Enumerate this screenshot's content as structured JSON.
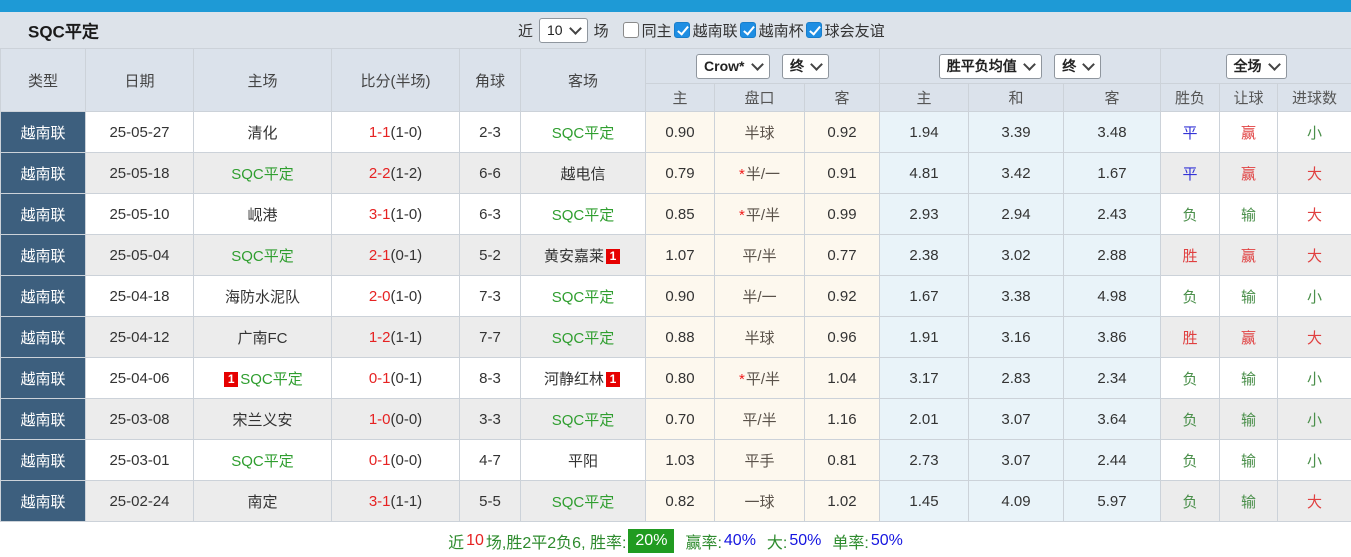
{
  "title": "SQC平定",
  "toolbar": {
    "near_label": "近",
    "count_select": "10",
    "unit_label": "场",
    "filters": [
      {
        "label": "同主",
        "checked": false
      },
      {
        "label": "越南联",
        "checked": true
      },
      {
        "label": "越南杯",
        "checked": true
      },
      {
        "label": "球会友谊",
        "checked": true
      }
    ]
  },
  "header": {
    "left": [
      "类型",
      "日期",
      "主场",
      "比分(半场)",
      "角球",
      "客场"
    ],
    "dropdowns": {
      "company": "Crow*",
      "final1": "终",
      "avg": "胜平负均值",
      "final2": "终",
      "scope": "全场"
    },
    "sub": [
      "主",
      "盘口",
      "客",
      "主",
      "和",
      "客",
      "胜负",
      "让球",
      "进球数"
    ]
  },
  "rows": [
    {
      "league": "越南联",
      "date": "25-05-27",
      "home": "清化",
      "home_sqc": false,
      "home_badge": "",
      "score": "1-1",
      "half": "(1-0)",
      "corner": "2-3",
      "away": "SQC平定",
      "away_sqc": true,
      "away_badge": "",
      "o1": "0.90",
      "star": false,
      "pan": "半球",
      "o2": "0.92",
      "w": "1.94",
      "d": "3.39",
      "l": "3.48",
      "res": "平",
      "let": "赢",
      "goal": "小"
    },
    {
      "league": "越南联",
      "date": "25-05-18",
      "home": "SQC平定",
      "home_sqc": true,
      "home_badge": "",
      "score": "2-2",
      "half": "(1-2)",
      "corner": "6-6",
      "away": "越电信",
      "away_sqc": false,
      "away_badge": "",
      "o1": "0.79",
      "star": true,
      "pan": "半/一",
      "o2": "0.91",
      "w": "4.81",
      "d": "3.42",
      "l": "1.67",
      "res": "平",
      "let": "赢",
      "goal": "大"
    },
    {
      "league": "越南联",
      "date": "25-05-10",
      "home": "岘港",
      "home_sqc": false,
      "home_badge": "",
      "score": "3-1",
      "half": "(1-0)",
      "corner": "6-3",
      "away": "SQC平定",
      "away_sqc": true,
      "away_badge": "",
      "o1": "0.85",
      "star": true,
      "pan": "平/半",
      "o2": "0.99",
      "w": "2.93",
      "d": "2.94",
      "l": "2.43",
      "res": "负",
      "let": "输",
      "goal": "大"
    },
    {
      "league": "越南联",
      "date": "25-05-04",
      "home": "SQC平定",
      "home_sqc": true,
      "home_badge": "",
      "score": "2-1",
      "half": "(0-1)",
      "corner": "5-2",
      "away": "黄安嘉莱",
      "away_sqc": false,
      "away_badge": "1",
      "o1": "1.07",
      "star": false,
      "pan": "平/半",
      "o2": "0.77",
      "w": "2.38",
      "d": "3.02",
      "l": "2.88",
      "res": "胜",
      "let": "赢",
      "goal": "大"
    },
    {
      "league": "越南联",
      "date": "25-04-18",
      "home": "海防水泥队",
      "home_sqc": false,
      "home_badge": "",
      "score": "2-0",
      "half": "(1-0)",
      "corner": "7-3",
      "away": "SQC平定",
      "away_sqc": true,
      "away_badge": "",
      "o1": "0.90",
      "star": false,
      "pan": "半/一",
      "o2": "0.92",
      "w": "1.67",
      "d": "3.38",
      "l": "4.98",
      "res": "负",
      "let": "输",
      "goal": "小"
    },
    {
      "league": "越南联",
      "date": "25-04-12",
      "home": "广南FC",
      "home_sqc": false,
      "home_badge": "",
      "score": "1-2",
      "half": "(1-1)",
      "corner": "7-7",
      "away": "SQC平定",
      "away_sqc": true,
      "away_badge": "",
      "o1": "0.88",
      "star": false,
      "pan": "半球",
      "o2": "0.96",
      "w": "1.91",
      "d": "3.16",
      "l": "3.86",
      "res": "胜",
      "let": "赢",
      "goal": "大"
    },
    {
      "league": "越南联",
      "date": "25-04-06",
      "home": "SQC平定",
      "home_sqc": true,
      "home_badge": "1",
      "score": "0-1",
      "half": "(0-1)",
      "corner": "8-3",
      "away": "河静红林",
      "away_sqc": false,
      "away_badge": "1",
      "o1": "0.80",
      "star": true,
      "pan": "平/半",
      "o2": "1.04",
      "w": "3.17",
      "d": "2.83",
      "l": "2.34",
      "res": "负",
      "let": "输",
      "goal": "小"
    },
    {
      "league": "越南联",
      "date": "25-03-08",
      "home": "宋兰义安",
      "home_sqc": false,
      "home_badge": "",
      "score": "1-0",
      "half": "(0-0)",
      "corner": "3-3",
      "away": "SQC平定",
      "away_sqc": true,
      "away_badge": "",
      "o1": "0.70",
      "star": false,
      "pan": "平/半",
      "o2": "1.16",
      "w": "2.01",
      "d": "3.07",
      "l": "3.64",
      "res": "负",
      "let": "输",
      "goal": "小"
    },
    {
      "league": "越南联",
      "date": "25-03-01",
      "home": "SQC平定",
      "home_sqc": true,
      "home_badge": "",
      "score": "0-1",
      "half": "(0-0)",
      "corner": "4-7",
      "away": "平阳",
      "away_sqc": false,
      "away_badge": "",
      "o1": "1.03",
      "star": false,
      "pan": "平手",
      "o2": "0.81",
      "w": "2.73",
      "d": "3.07",
      "l": "2.44",
      "res": "负",
      "let": "输",
      "goal": "小"
    },
    {
      "league": "越南联",
      "date": "25-02-24",
      "home": "南定",
      "home_sqc": false,
      "home_badge": "",
      "score": "3-1",
      "half": "(1-1)",
      "corner": "5-5",
      "away": "SQC平定",
      "away_sqc": true,
      "away_badge": "",
      "o1": "0.82",
      "star": false,
      "pan": "一球",
      "o2": "1.02",
      "w": "1.45",
      "d": "4.09",
      "l": "5.97",
      "res": "负",
      "let": "输",
      "goal": "大"
    }
  ],
  "summary": {
    "s1": "近",
    "s2": "10",
    "s3": "场,胜2平2负6, 胜率:",
    "rate": "20%",
    "s4": "赢率:",
    "v4": "40%",
    "s5": "大:",
    "v5": "50%",
    "s6": "单率:",
    "v6": "50%"
  },
  "misc": {
    "star": "*"
  },
  "colors": {
    "top_bar": "#1e9ad6",
    "league_bg": "#3d5f7e",
    "sqc_green": "#2f9e2f",
    "score_red": "#e62222",
    "cream_bg": "#fdf8ee",
    "pale_blue_bg": "#e9f3f9",
    "badge_red": "#e60000",
    "rate_badge_green": "#219b21",
    "value_colors": {
      "平": "c-blue",
      "胜": "c-red",
      "负": "c-green",
      "赢": "c-red",
      "输": "c-green",
      "大": "c-red",
      "小": "c-green"
    }
  }
}
